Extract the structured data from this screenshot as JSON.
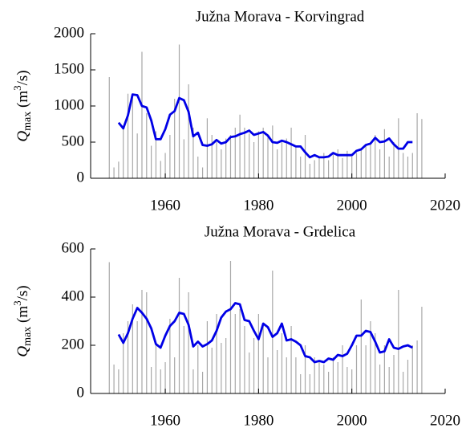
{
  "chart_data": [
    {
      "type": "combo",
      "title": "Južna Morava - Korvingrad",
      "ylabel": {
        "base": "Q",
        "sub": "max",
        "mid": " (m",
        "sup": "3",
        "end": "/s)"
      },
      "xlim": [
        1944,
        2020
      ],
      "xticks": [
        1960,
        1980,
        2000,
        2020
      ],
      "ylim": [
        0,
        2000
      ],
      "yticks": [
        0,
        500,
        1000,
        1500,
        2000
      ],
      "series": [
        {
          "type": "bar",
          "color": "#a8a8a8",
          "x": [
            1948,
            1949,
            1950,
            1951,
            1952,
            1953,
            1954,
            1955,
            1956,
            1957,
            1958,
            1959,
            1960,
            1961,
            1962,
            1963,
            1964,
            1965,
            1966,
            1967,
            1968,
            1969,
            1970,
            1971,
            1972,
            1973,
            1974,
            1975,
            1976,
            1977,
            1978,
            1979,
            1980,
            1981,
            1982,
            1983,
            1984,
            1985,
            1986,
            1987,
            1988,
            1989,
            1990,
            1991,
            1992,
            1993,
            1994,
            1995,
            1996,
            1997,
            1998,
            1999,
            2000,
            2001,
            2002,
            2003,
            2004,
            2005,
            2006,
            2007,
            2008,
            2009,
            2010,
            2011,
            2012,
            2013,
            2014,
            2015
          ],
          "values": [
            1400,
            150,
            230,
            700,
            1170,
            1150,
            620,
            1750,
            900,
            450,
            650,
            240,
            350,
            600,
            1100,
            1850,
            540,
            1300,
            700,
            300,
            150,
            830,
            600,
            500,
            400,
            550,
            600,
            700,
            880,
            700,
            620,
            500,
            650,
            700,
            600,
            730,
            400,
            500,
            550,
            700,
            450,
            300,
            600,
            200,
            250,
            280,
            350,
            250,
            330,
            400,
            280,
            380,
            300,
            350,
            420,
            450,
            500,
            600,
            400,
            680,
            300,
            500,
            830,
            350,
            300,
            350,
            900,
            820
          ]
        },
        {
          "type": "line",
          "color": "#0000e6",
          "x": [
            1950,
            1951,
            1952,
            1953,
            1954,
            1955,
            1956,
            1957,
            1958,
            1959,
            1960,
            1961,
            1962,
            1963,
            1964,
            1965,
            1966,
            1967,
            1968,
            1969,
            1970,
            1971,
            1972,
            1973,
            1974,
            1975,
            1976,
            1977,
            1978,
            1979,
            1980,
            1981,
            1982,
            1983,
            1984,
            1985,
            1986,
            1987,
            1988,
            1989,
            1990,
            1991,
            1992,
            1993,
            1994,
            1995,
            1996,
            1997,
            1998,
            1999,
            2000,
            2001,
            2002,
            2003,
            2004,
            2005,
            2006,
            2007,
            2008,
            2009,
            2010,
            2011,
            2012,
            2013
          ],
          "values": [
            770,
            690,
            870,
            1160,
            1150,
            1000,
            980,
            800,
            540,
            540,
            680,
            880,
            930,
            1110,
            1080,
            920,
            580,
            630,
            460,
            450,
            470,
            530,
            480,
            500,
            570,
            580,
            610,
            630,
            660,
            600,
            620,
            640,
            590,
            500,
            490,
            520,
            500,
            470,
            440,
            440,
            360,
            290,
            320,
            290,
            290,
            300,
            350,
            320,
            320,
            320,
            320,
            380,
            400,
            460,
            480,
            560,
            500,
            510,
            550,
            470,
            410,
            410,
            500,
            500
          ]
        }
      ]
    },
    {
      "type": "combo",
      "title": "Južna Morava - Grdelica",
      "ylabel": {
        "base": "Q",
        "sub": "max",
        "mid": " (m",
        "sup": "3",
        "end": "/s)"
      },
      "xlim": [
        1944,
        2020
      ],
      "xticks": [
        1960,
        1980,
        2000,
        2020
      ],
      "ylim": [
        0,
        600
      ],
      "yticks": [
        0,
        200,
        400,
        600
      ],
      "series": [
        {
          "type": "bar",
          "color": "#a8a8a8",
          "x": [
            1948,
            1949,
            1950,
            1951,
            1952,
            1953,
            1954,
            1955,
            1956,
            1957,
            1958,
            1959,
            1960,
            1961,
            1962,
            1963,
            1964,
            1965,
            1966,
            1967,
            1968,
            1969,
            1970,
            1971,
            1972,
            1973,
            1974,
            1975,
            1976,
            1977,
            1978,
            1979,
            1980,
            1981,
            1982,
            1983,
            1984,
            1985,
            1986,
            1987,
            1988,
            1989,
            1990,
            1991,
            1992,
            1993,
            1994,
            1995,
            1996,
            1997,
            1998,
            1999,
            2000,
            2001,
            2002,
            2003,
            2004,
            2005,
            2006,
            2007,
            2008,
            2009,
            2010,
            2011,
            2012,
            2013,
            2014,
            2015
          ],
          "values": [
            545,
            120,
            100,
            250,
            300,
            370,
            300,
            430,
            420,
            110,
            200,
            100,
            130,
            310,
            150,
            480,
            280,
            420,
            100,
            200,
            90,
            300,
            190,
            330,
            210,
            230,
            550,
            330,
            350,
            280,
            170,
            230,
            330,
            280,
            150,
            510,
            180,
            250,
            150,
            280,
            150,
            80,
            200,
            80,
            150,
            130,
            120,
            90,
            150,
            130,
            200,
            110,
            100,
            200,
            390,
            200,
            300,
            250,
            120,
            200,
            110,
            160,
            430,
            90,
            140,
            200,
            220,
            360
          ]
        },
        {
          "type": "line",
          "color": "#0000e6",
          "x": [
            1950,
            1951,
            1952,
            1953,
            1954,
            1955,
            1956,
            1957,
            1958,
            1959,
            1960,
            1961,
            1962,
            1963,
            1964,
            1965,
            1966,
            1967,
            1968,
            1969,
            1970,
            1971,
            1972,
            1973,
            1974,
            1975,
            1976,
            1977,
            1978,
            1979,
            1980,
            1981,
            1982,
            1983,
            1984,
            1985,
            1986,
            1987,
            1988,
            1989,
            1990,
            1991,
            1992,
            1993,
            1994,
            1995,
            1996,
            1997,
            1998,
            1999,
            2000,
            2001,
            2002,
            2003,
            2004,
            2005,
            2006,
            2007,
            2008,
            2009,
            2010,
            2011,
            2012,
            2013
          ],
          "values": [
            245,
            210,
            250,
            310,
            355,
            335,
            310,
            270,
            205,
            190,
            240,
            280,
            300,
            335,
            330,
            285,
            195,
            215,
            195,
            205,
            220,
            260,
            315,
            340,
            350,
            375,
            370,
            305,
            300,
            260,
            225,
            290,
            275,
            235,
            250,
            290,
            220,
            225,
            215,
            200,
            155,
            150,
            130,
            135,
            130,
            145,
            140,
            160,
            155,
            165,
            200,
            240,
            240,
            260,
            255,
            215,
            170,
            175,
            225,
            190,
            185,
            195,
            200,
            190
          ]
        }
      ]
    }
  ]
}
